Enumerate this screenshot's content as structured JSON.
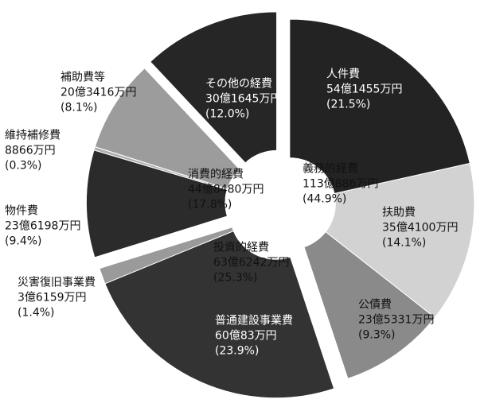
{
  "chart_data": {
    "type": "pie",
    "groups": [
      {
        "name": "義務的経費",
        "amount": "113億886万円",
        "value": 44.9,
        "value_label": "(44.9%)",
        "items": [
          {
            "name": "人件費",
            "amount": "54億1455万円",
            "value": 21.5,
            "value_label": "(21.5%)",
            "color": "#232323"
          },
          {
            "name": "扶助費",
            "amount": "35億4100万円",
            "value": 14.1,
            "value_label": "(14.1%)",
            "color": "#d2d2d2"
          },
          {
            "name": "公債費",
            "amount": "23億5331万円",
            "value": 9.3,
            "value_label": "(9.3%)",
            "color": "#8a8a8a"
          }
        ]
      },
      {
        "name": "投資的経費",
        "amount": "63億6242万円",
        "value": 25.3,
        "value_label": "(25.3%)",
        "items": [
          {
            "name": "普通建設事業費",
            "amount": "60億83万円",
            "value": 23.9,
            "value_label": "(23.9%)",
            "color": "#333333"
          },
          {
            "name": "災害復旧事業費",
            "amount": "3億6159万円",
            "value": 1.4,
            "value_label": "(1.4%)",
            "color": "#9a9a9a"
          }
        ]
      },
      {
        "name": "消費的経費",
        "amount": "44億8480万円",
        "value": 17.8,
        "value_label": "(17.8%)",
        "items": [
          {
            "name": "物件費",
            "amount": "23億6198万円",
            "value": 9.4,
            "value_label": "(9.4%)",
            "color": "#2b2b2b"
          },
          {
            "name": "維持補修費",
            "amount": "8866万円",
            "value": 0.3,
            "value_label": "(0.3%)",
            "color": "#b0b0b0"
          },
          {
            "name": "補助費等",
            "amount": "20億3416万円",
            "value": 8.1,
            "value_label": "(8.1%)",
            "color": "#9c9c9c"
          }
        ]
      },
      {
        "name": "その他の経費",
        "amount": "30億1645万円",
        "value": 12.0,
        "value_label": "(12.0%)",
        "color": "#262626",
        "items": []
      }
    ]
  }
}
